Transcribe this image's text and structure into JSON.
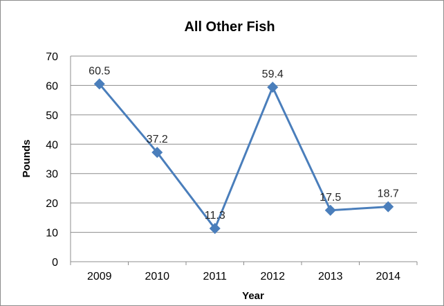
{
  "chart_data": {
    "type": "line",
    "title": "All Other Fish",
    "xlabel": "Year",
    "ylabel": "Pounds",
    "categories": [
      "2009",
      "2010",
      "2011",
      "2012",
      "2013",
      "2014"
    ],
    "series": [
      {
        "values": [
          60.5,
          37.2,
          11.3,
          59.4,
          17.5,
          18.7
        ],
        "data_labels": [
          "60.5",
          "37.2",
          "11.3",
          "59.4",
          "17.5",
          "18.7"
        ]
      }
    ],
    "ylim": [
      0,
      70
    ],
    "yticks": [
      "0",
      "10",
      "20",
      "30",
      "40",
      "50",
      "60",
      "70"
    ],
    "grid": "horizontal",
    "marker": "diamond",
    "legend": "none",
    "colors": {
      "series": "#4a7ebb",
      "grid": "#8c8c8c",
      "axis": "#8c8c8c"
    }
  }
}
